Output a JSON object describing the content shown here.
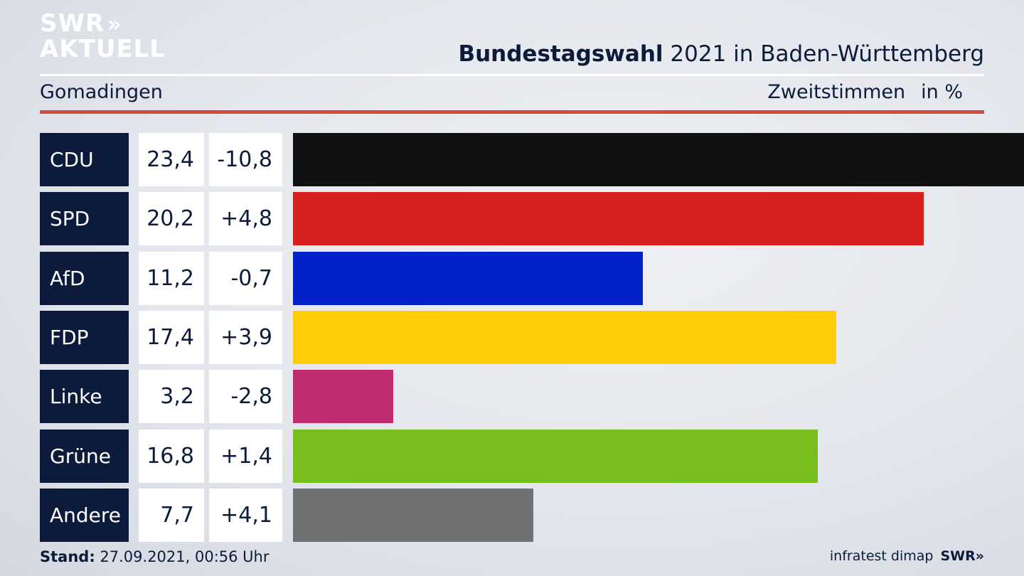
{
  "logo": {
    "line1": "SWR",
    "chevrons": "»",
    "line2": "AKTUELL"
  },
  "header": {
    "title_bold": "Bundestagswahl",
    "title_rest": " 2021 in Baden-Württemberg",
    "location": "Gomadingen",
    "measure": "Zweitstimmen",
    "unit": "in %"
  },
  "chart_data": {
    "type": "bar",
    "orientation": "horizontal",
    "categories": [
      "CDU",
      "SPD",
      "AfD",
      "FDP",
      "Linke",
      "Grüne",
      "Andere"
    ],
    "values": [
      23.4,
      20.2,
      11.2,
      17.4,
      3.2,
      16.8,
      7.7
    ],
    "value_labels": [
      "23,4",
      "20,2",
      "11,2",
      "17,4",
      "3,2",
      "16,8",
      "7,7"
    ],
    "changes": [
      "-10,8",
      "+4,8",
      "-0,7",
      "+3,9",
      "-2,8",
      "+1,4",
      "+4,1"
    ],
    "colors": [
      "#111111",
      "#d82020",
      "#0022c8",
      "#ffcc0a",
      "#bf2d6e",
      "#78be1e",
      "#707173"
    ],
    "xlim": [
      0,
      23.4
    ]
  },
  "footer": {
    "stand_label": "Stand:",
    "stand_value": " 27.09.2021, 00:56 Uhr",
    "source": "infratest dimap",
    "brand": "SWR»"
  }
}
